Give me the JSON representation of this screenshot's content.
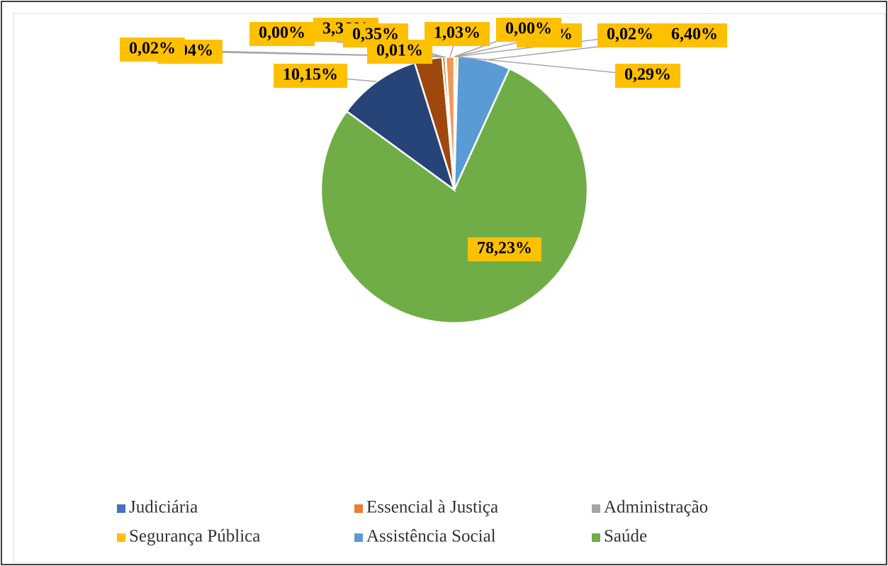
{
  "chart_data": {
    "type": "pie",
    "categories": [
      "Judiciária",
      "Essencial à Justiça",
      "Administração",
      "Segurança Pública",
      "Assistência Social",
      "Saúde",
      null,
      null,
      null,
      null,
      null,
      null,
      null,
      null
    ],
    "values": [
      0.0,
      0.1,
      0.02,
      0.29,
      6.4,
      78.23,
      10.15,
      3.36,
      0.01,
      0.35,
      0.0,
      0.02,
      0.04,
      1.03
    ],
    "value_labels": [
      "0,00%",
      "0,10%",
      "0,02%",
      "0,29%",
      "6,40%",
      "78,23%",
      "10,15%",
      "3,36%",
      "0,01%",
      "0,35%",
      "0,00%",
      "0,02%",
      "0,04%",
      "1,03%"
    ],
    "colors": [
      "#4472c4",
      "#ed7d31",
      "#a5a5a5",
      "#ffc000",
      "#5b9bd5",
      "#70ad47",
      "#264478",
      "#9e480e",
      "#636363",
      "#997300",
      "#255e91",
      "#43682b",
      "#698ed0",
      "#f1975a"
    ],
    "label_color": "#ffc000"
  }
}
